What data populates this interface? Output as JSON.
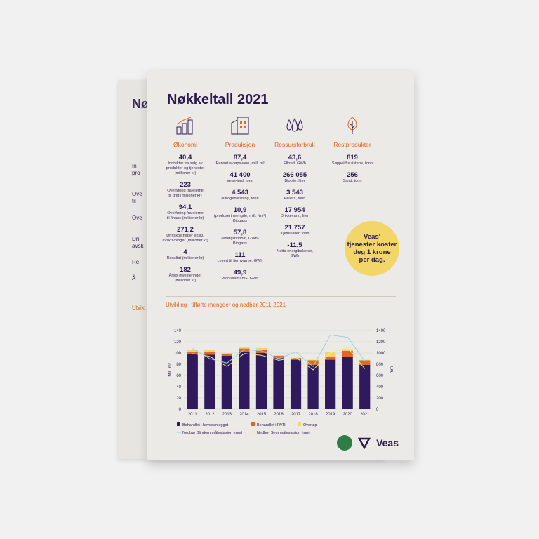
{
  "title": "Nøkkeltall 2021",
  "columns": [
    {
      "heading": "Økonomi",
      "icon": "bar-chart-icon",
      "items": [
        {
          "value": "40,4",
          "desc": "Inntekter fra salg av\nprodukter og tjenester\n(millioner kr)"
        },
        {
          "value": "223",
          "desc": "Overføring fra eierne\ntil drift (millioner kr)"
        },
        {
          "value": "94,1",
          "desc": "Overføring fra eierne\ntil finans (millioner kr)"
        },
        {
          "value": "271,2",
          "desc": "Driftskostnader ekskl.\navskrivninger (millioner kr)"
        },
        {
          "value": "4",
          "desc": "Resultat (millioner kr)"
        },
        {
          "value": "182",
          "desc": "Årets investeringer\n(millioner kr)"
        }
      ]
    },
    {
      "heading": "Produksjon",
      "icon": "factory-icon",
      "items": [
        {
          "value": "87,4",
          "desc": "Renset avløpsvann, mill. m³"
        },
        {
          "value": "41 400",
          "desc": "Veas-jord, tonn"
        },
        {
          "value": "4 543",
          "desc": "Nitrogenløsning, tonn"
        },
        {
          "value": "10,9",
          "desc": "(produsert mengde, mill. Nm³)\nBiogass"
        },
        {
          "value": "57,8",
          "desc": "(energiinnhold, GWh)\nBiogass"
        },
        {
          "value": "111",
          "desc": "Levert til fjernvarme, GWh"
        },
        {
          "value": "49,9",
          "desc": "Produsert LBG, GWh"
        }
      ]
    },
    {
      "heading": "Ressursforbruk",
      "icon": "drops-icon",
      "items": [
        {
          "value": "43,6",
          "desc": "Elkraft, GWh"
        },
        {
          "value": "266 055",
          "desc": "Bioolje, liter"
        },
        {
          "value": "3 543",
          "desc": "Pellets, tonn"
        },
        {
          "value": "17 954",
          "desc": "Drikkevann, liter"
        },
        {
          "value": "21 757",
          "desc": "Kjemikalier, tonn"
        },
        {
          "value": "-11,5",
          "desc": "Netto energibalanse,\nGWh"
        }
      ]
    },
    {
      "heading": "Restprodukter",
      "icon": "tree-icon",
      "items": [
        {
          "value": "819",
          "desc": "Søppel fra ristene, tonn"
        },
        {
          "value": "256",
          "desc": "Sand, tonn"
        }
      ]
    }
  ],
  "badge_text": "Veas'\ntjenester koster\ndeg 1 krone\nper dag.",
  "back_sheet": {
    "ghost_lines": [
      "Nø",
      "In",
      "pro",
      "Ove",
      "til",
      "Ove",
      "Dri",
      "avsk",
      "Re",
      "Å",
      "Utvikl"
    ]
  },
  "chart_data": {
    "type": "bar",
    "title": "Utvikling i tilførte mengder og nedbør 2011-2021",
    "categories": [
      "2011",
      "2012",
      "2013",
      "2014",
      "2015",
      "2016",
      "2017",
      "2018",
      "2019",
      "2020",
      "2021"
    ],
    "ylabel": "Mill. m³",
    "y2label": "mm",
    "ylim": [
      0,
      140
    ],
    "y2lim": [
      0,
      1400
    ],
    "yticks": [
      0,
      20,
      40,
      60,
      80,
      100,
      120,
      140
    ],
    "y2ticks": [
      0,
      200,
      400,
      600,
      800,
      1000,
      1200,
      1400
    ],
    "series": [
      {
        "name": "Behandlet i hovedanlegget",
        "color": "#2e1a5c",
        "stack": true,
        "values": [
          99,
          97,
          95,
          102,
          100,
          91,
          88,
          79,
          88,
          93,
          79
        ]
      },
      {
        "name": "Behandlet i RVR",
        "color": "#e06820",
        "stack": true,
        "values": [
          3,
          5,
          3,
          6,
          6,
          4,
          3,
          8,
          6,
          11,
          8
        ]
      },
      {
        "name": "Overløp",
        "color": "#f3d66a",
        "stack": true,
        "values": [
          3,
          3,
          2,
          3,
          3,
          1,
          1,
          1,
          8,
          3,
          1
        ]
      }
    ],
    "lines": [
      {
        "name": "Nedbør Blindern målestasjon (mm)",
        "color": "#9ad0e4",
        "values": [
          1080,
          900,
          820,
          1060,
          1040,
          900,
          1020,
          760,
          1320,
          1280,
          860
        ]
      },
      {
        "name": "Nedbør Sem målestasjon (mm)",
        "color": "#f6e6a8",
        "values": [
          990,
          940,
          760,
          990,
          960,
          870,
          920,
          700,
          1000,
          1100,
          720
        ]
      }
    ],
    "legend": "bottom"
  },
  "footer": {
    "brand": "Veas"
  }
}
